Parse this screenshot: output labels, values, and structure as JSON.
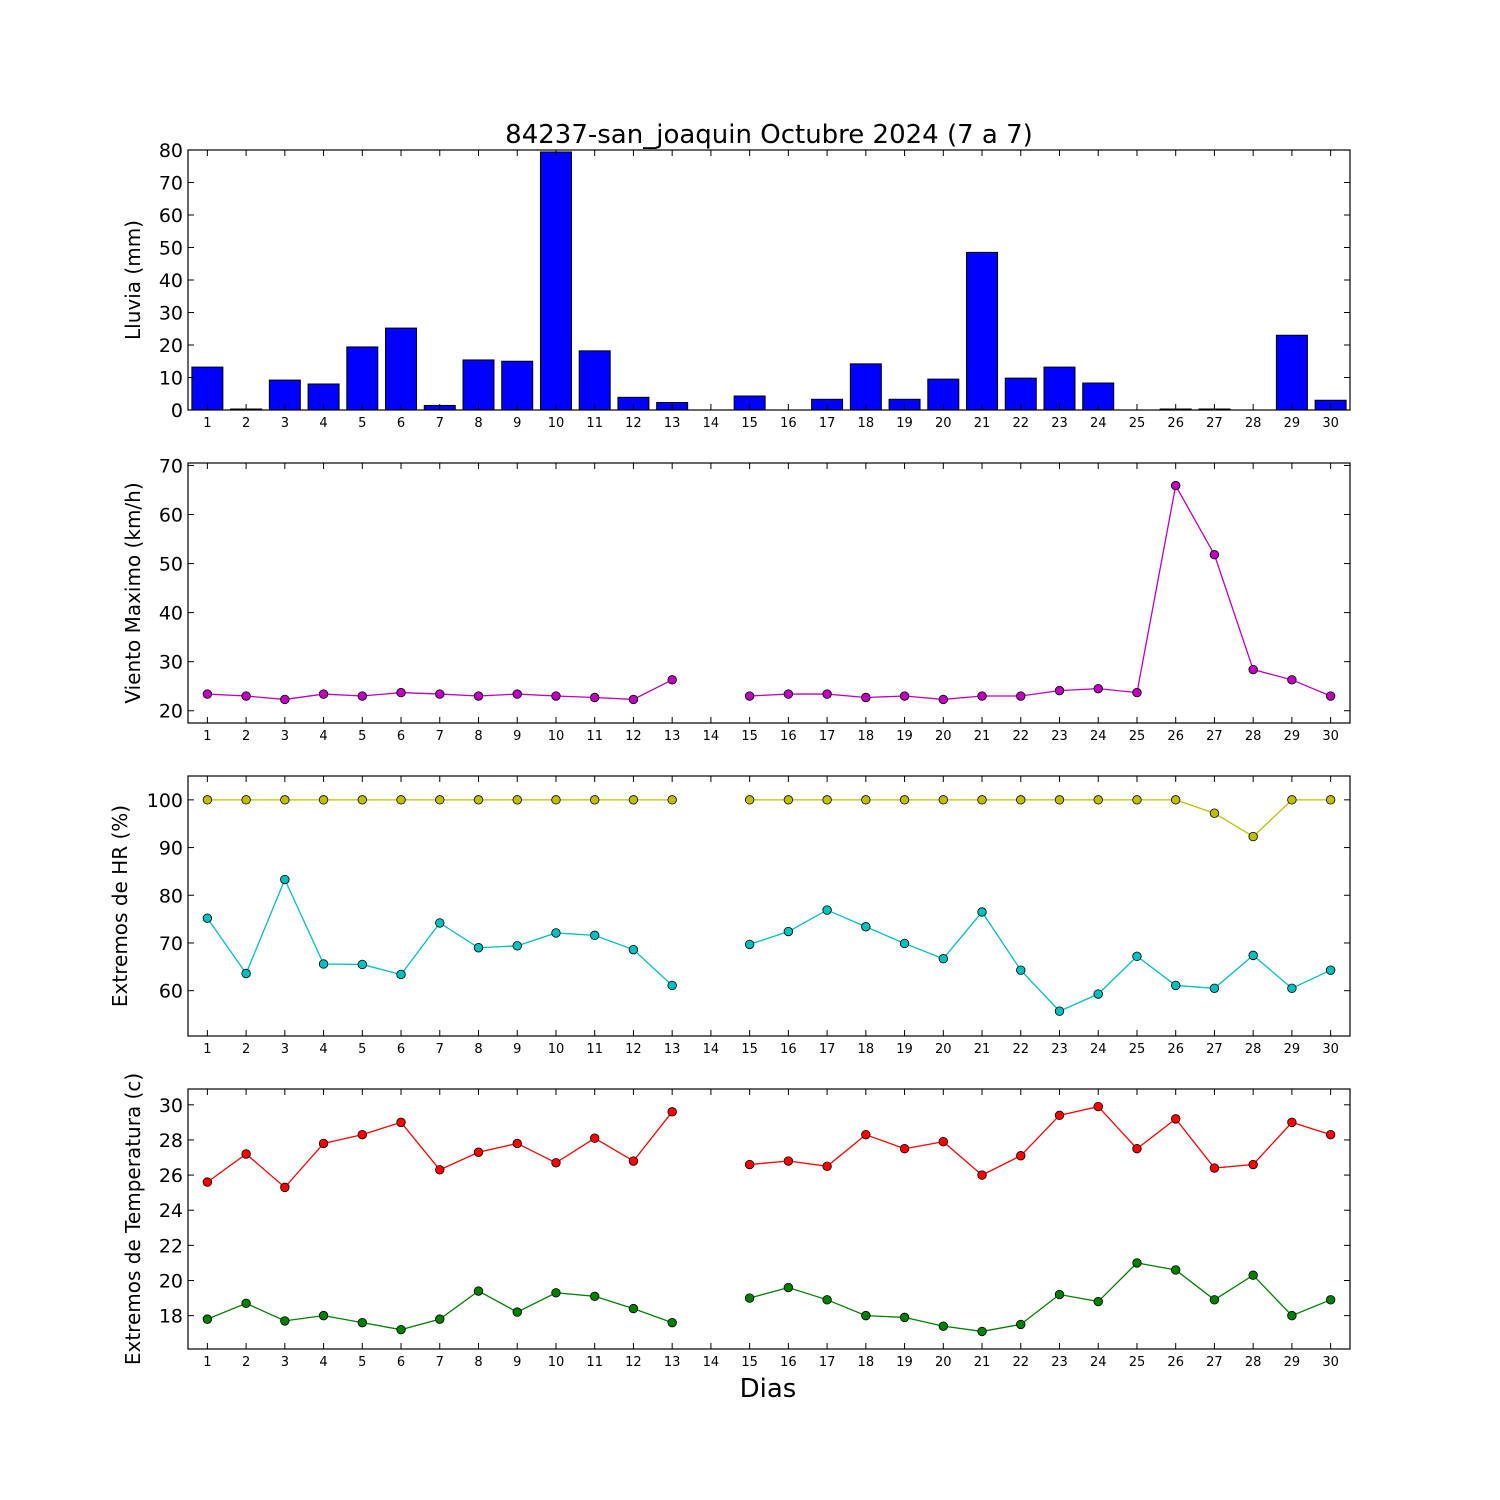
{
  "figure": {
    "title": "84237-san_joaquin Octubre 2024  (7 a 7)",
    "xlabel": "Dias"
  },
  "chart_data": [
    {
      "type": "bar",
      "ylabel": "Lluvia (mm)",
      "categories": [
        1,
        2,
        3,
        4,
        5,
        6,
        7,
        8,
        9,
        10,
        11,
        12,
        13,
        14,
        15,
        16,
        17,
        18,
        19,
        20,
        21,
        22,
        23,
        24,
        25,
        26,
        27,
        28,
        29,
        30
      ],
      "xticks": [
        "1",
        "2",
        "3",
        "4",
        "5",
        "6",
        "7",
        "8",
        "9",
        "10",
        "11",
        "12",
        "13",
        "14",
        "15",
        "16",
        "17",
        "18",
        "19",
        "20",
        "21",
        "22",
        "23",
        "24",
        "25",
        "26",
        "27",
        "28",
        "29",
        "30"
      ],
      "values": [
        13.2,
        0.3,
        9.2,
        8.0,
        19.4,
        25.2,
        1.4,
        15.4,
        15.0,
        79.4,
        18.2,
        3.9,
        2.3,
        0,
        4.3,
        0,
        3.3,
        14.2,
        3.3,
        9.5,
        48.5,
        9.8,
        13.2,
        8.3,
        0,
        0.3,
        0.3,
        0,
        23.0,
        3.0
      ],
      "ylim": [
        0,
        80
      ],
      "yticks": [
        "0",
        "10",
        "20",
        "30",
        "40",
        "50",
        "60",
        "70",
        "80"
      ],
      "color": "#0000ff"
    },
    {
      "type": "line",
      "ylabel": "Viento Maximo (km/h)",
      "x": [
        1,
        2,
        3,
        4,
        5,
        6,
        7,
        8,
        9,
        10,
        11,
        12,
        13,
        14,
        15,
        16,
        17,
        18,
        19,
        20,
        21,
        22,
        23,
        24,
        25,
        26,
        27,
        28,
        29,
        30
      ],
      "xticks": [
        "1",
        "2",
        "3",
        "4",
        "5",
        "6",
        "7",
        "8",
        "9",
        "10",
        "11",
        "12",
        "13",
        "14",
        "15",
        "16",
        "17",
        "18",
        "19",
        "20",
        "21",
        "22",
        "23",
        "24",
        "25",
        "26",
        "27",
        "28",
        "29",
        "30"
      ],
      "series": [
        {
          "color": "#bf00bf",
          "values": [
            23.4,
            23.0,
            22.3,
            23.4,
            23.0,
            23.7,
            23.4,
            23.0,
            23.4,
            23.0,
            22.7,
            22.3,
            26.3,
            null,
            23.0,
            23.4,
            23.4,
            22.7,
            23.0,
            22.3,
            23.0,
            23.0,
            24.1,
            24.5,
            23.7,
            65.9,
            51.8,
            28.4,
            26.3,
            23.0
          ]
        }
      ],
      "ylim": [
        17.5,
        70.5
      ],
      "yticks": [
        "20",
        "30",
        "40",
        "50",
        "60",
        "70"
      ]
    },
    {
      "type": "line",
      "ylabel": "Extremos de HR (%)",
      "x": [
        1,
        2,
        3,
        4,
        5,
        6,
        7,
        8,
        9,
        10,
        11,
        12,
        13,
        14,
        15,
        16,
        17,
        18,
        19,
        20,
        21,
        22,
        23,
        24,
        25,
        26,
        27,
        28,
        29,
        30
      ],
      "xticks": [
        "1",
        "2",
        "3",
        "4",
        "5",
        "6",
        "7",
        "8",
        "9",
        "10",
        "11",
        "12",
        "13",
        "14",
        "15",
        "16",
        "17",
        "18",
        "19",
        "20",
        "21",
        "22",
        "23",
        "24",
        "25",
        "26",
        "27",
        "28",
        "29",
        "30"
      ],
      "series": [
        {
          "color": "#bfbf00",
          "values": [
            100,
            100,
            100,
            100,
            100,
            100,
            100,
            100,
            100,
            100,
            100,
            100,
            100,
            null,
            100,
            100,
            100,
            100,
            100,
            100,
            100,
            100,
            100,
            100,
            100,
            100,
            97.2,
            92.3,
            100,
            100
          ]
        },
        {
          "color": "#00bfbf",
          "values": [
            75.2,
            63.6,
            83.3,
            65.6,
            65.5,
            63.4,
            74.2,
            69.0,
            69.4,
            72.1,
            71.6,
            68.6,
            61.1,
            null,
            69.7,
            72.4,
            76.9,
            73.4,
            69.9,
            66.7,
            76.5,
            64.3,
            55.7,
            59.3,
            67.2,
            61.1,
            60.5,
            67.4,
            60.5,
            64.3
          ]
        }
      ],
      "ylim": [
        50.5,
        105
      ],
      "yticks": [
        "60",
        "70",
        "80",
        "90",
        "100"
      ]
    },
    {
      "type": "line",
      "ylabel": "Extremos de Temperatura (c)",
      "x": [
        1,
        2,
        3,
        4,
        5,
        6,
        7,
        8,
        9,
        10,
        11,
        12,
        13,
        14,
        15,
        16,
        17,
        18,
        19,
        20,
        21,
        22,
        23,
        24,
        25,
        26,
        27,
        28,
        29,
        30
      ],
      "xticks": [
        "1",
        "2",
        "3",
        "4",
        "5",
        "6",
        "7",
        "8",
        "9",
        "10",
        "11",
        "12",
        "13",
        "14",
        "15",
        "16",
        "17",
        "18",
        "19",
        "20",
        "21",
        "22",
        "23",
        "24",
        "25",
        "26",
        "27",
        "28",
        "29",
        "30"
      ],
      "series": [
        {
          "color": "#ff0000",
          "values": [
            25.6,
            27.2,
            25.3,
            27.8,
            28.3,
            29.0,
            26.3,
            27.3,
            27.8,
            26.7,
            28.1,
            26.8,
            29.6,
            null,
            26.6,
            26.8,
            26.5,
            28.3,
            27.5,
            27.9,
            26.0,
            27.1,
            29.4,
            29.9,
            27.5,
            29.2,
            26.4,
            26.6,
            29.0,
            28.3
          ]
        },
        {
          "color": "#008000",
          "values": [
            17.8,
            18.7,
            17.7,
            18.0,
            17.6,
            17.2,
            17.8,
            19.4,
            18.2,
            19.3,
            19.1,
            18.4,
            17.6,
            null,
            19.0,
            19.6,
            18.9,
            18.0,
            17.9,
            17.4,
            17.1,
            17.5,
            19.2,
            18.8,
            21.0,
            20.6,
            18.9,
            20.3,
            18.0,
            18.9
          ]
        }
      ],
      "ylim": [
        16.1,
        30.9
      ],
      "yticks": [
        "18",
        "20",
        "22",
        "24",
        "26",
        "28",
        "30"
      ]
    }
  ]
}
